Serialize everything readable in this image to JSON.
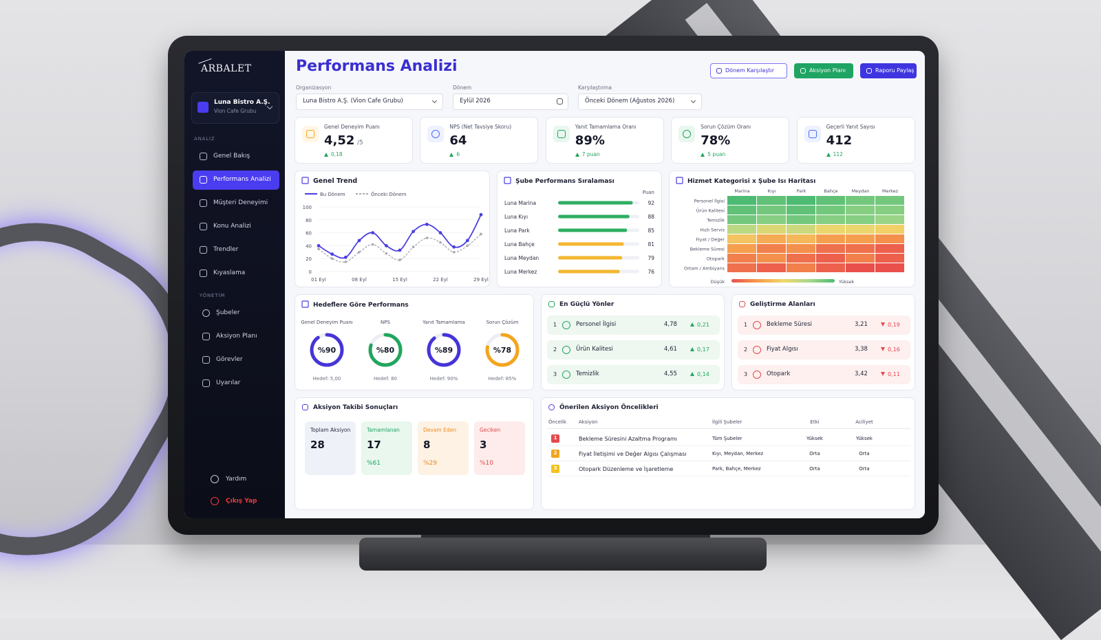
{
  "sidebar": {
    "brand": "ARBALET",
    "org_name": "Luna Bistro A.Ş.",
    "org_sub": "Vion Cafe Grubu",
    "section_analysis": "ANALİZ",
    "nav_analysis": [
      "Genel Bakış",
      "Performans Analizi",
      "Müşteri Deneyimi",
      "Konu Analizi",
      "Trendler",
      "Kıyaslama"
    ],
    "section_management": "YÖNETİM",
    "nav_management": [
      "Şubeler",
      "Aksiyon Planı",
      "Görevler",
      "Uyarılar"
    ],
    "help": "Yardım",
    "logout": "Çıkış Yap"
  },
  "header": {
    "title": "Performans Analizi",
    "buttons": [
      "Dönem Karşılaştır",
      "Aksiyon Planı",
      "Raporu Paylaş"
    ],
    "filters": [
      {
        "label": "Organizasyon",
        "value": "Luna Bistro A.Ş. (Vion Cafe Grubu)"
      },
      {
        "label": "Dönem",
        "value": "Eylül 2026"
      },
      {
        "label": "Karşılaştırma",
        "value": "Önceki Dönem (Ağustos 2026)"
      }
    ]
  },
  "kpis": [
    {
      "label": "Genel Deneyim Puanı",
      "value": "4,52",
      "unit": "/5",
      "change": "0,18"
    },
    {
      "label": "NPS (Net Tavsiye Skoru)",
      "value": "64",
      "change": "6"
    },
    {
      "label": "Yanıt Tamamlama Oranı",
      "value": "89%",
      "change": "7 puan"
    },
    {
      "label": "Sorun Çözüm Oranı",
      "value": "78%",
      "change": "5 puan"
    },
    {
      "label": "Geçerli Yanıt Sayısı",
      "value": "412",
      "change": "112"
    }
  ],
  "chart_data": [
    {
      "type": "line",
      "title": "Genel Trend",
      "categories": [
        "01 Eyl",
        null,
        null,
        "08 Eyl",
        null,
        null,
        "15 Eyl",
        null,
        null,
        "22 Eyl",
        null,
        null,
        "29 Eyl"
      ],
      "series": [
        {
          "name": "Bu Dönem",
          "color": "#4b3fe0",
          "values": [
            40,
            27,
            22,
            48,
            60,
            40,
            33,
            62,
            73,
            60,
            38,
            48,
            88
          ]
        },
        {
          "name": "Önceki Dönem",
          "color": "#a8a8b0",
          "values": [
            35,
            20,
            15,
            30,
            42,
            28,
            18,
            38,
            52,
            45,
            30,
            40,
            58
          ]
        }
      ],
      "ylim": [
        0,
        100
      ],
      "yticks": [
        0,
        20,
        40,
        60,
        80,
        100
      ]
    },
    {
      "type": "bar",
      "title": "Şube Performans Sıralaması",
      "value_header": "Puan",
      "categories": [
        "Luna Marina",
        "Luna Kıyı",
        "Luna Park",
        "Luna Bahçe",
        "Luna Meydan",
        "Luna Merkez"
      ],
      "values": [
        92,
        88,
        85,
        81,
        79,
        76
      ],
      "colors": [
        "#2fae63",
        "#2fae63",
        "#2fae63",
        "#f3b731",
        "#f3b731",
        "#f3b731"
      ],
      "xlim": [
        0,
        100
      ]
    },
    {
      "type": "heatmap",
      "title": "Hizmet Kategorisi x Şube Isı Haritası",
      "columns": [
        "Marina",
        "Kıyı",
        "Park",
        "Bahçe",
        "Meydan",
        "Merkez"
      ],
      "rows": [
        "Personel İlgisi",
        "Ürün Kalitesi",
        "Temizlik",
        "Hızlı Servis",
        "Fiyat / Değer",
        "Bekleme Süresi",
        "Otopark",
        "Ortam / Ambiyans"
      ],
      "values": [
        [
          4.8,
          4.7,
          4.8,
          4.7,
          4.6,
          4.6
        ],
        [
          4.7,
          4.6,
          4.7,
          4.6,
          4.5,
          4.5
        ],
        [
          4.6,
          4.5,
          4.6,
          4.5,
          4.5,
          4.4
        ],
        [
          4.2,
          4.0,
          4.1,
          3.9,
          3.9,
          3.8
        ],
        [
          3.7,
          3.5,
          3.6,
          3.4,
          3.4,
          3.3
        ],
        [
          3.4,
          3.2,
          3.3,
          3.1,
          3.1,
          3.0
        ],
        [
          3.2,
          3.3,
          3.1,
          3.0,
          3.2,
          3.0
        ],
        [
          3.1,
          3.0,
          3.2,
          3.0,
          2.9,
          2.9
        ]
      ],
      "colors": [
        "#e9504c",
        "#f59c4c",
        "#f2d66a",
        "#a8d98b",
        "#4dbb72"
      ],
      "legend_low": "Düşük",
      "legend_high": "Yüksek"
    },
    {
      "type": "gauge",
      "title": "Hedeflere Göre Performans",
      "categories": [
        "Genel Deneyim Puanı",
        "NPS",
        "Yanıt Tamamlama",
        "Sorun Çözüm"
      ],
      "values": [
        90,
        80,
        89,
        78
      ],
      "value_labels": [
        "%90",
        "%80",
        "%89",
        "%78"
      ],
      "target_labels": [
        "Hedef: 5,00",
        "Hedef: 80",
        "Hedef: 90%",
        "Hedef: 85%"
      ],
      "colors": [
        "#4535d8",
        "#22a55e",
        "#4535d8",
        "#f3a51f"
      ],
      "ylim": [
        0,
        100
      ]
    }
  ],
  "strengths": {
    "title": "En Güçlü Yönler",
    "items": [
      {
        "rank": "1",
        "name": "Personel İlgisi",
        "score": "4,78",
        "change": "0,21"
      },
      {
        "rank": "2",
        "name": "Ürün Kalitesi",
        "score": "4,61",
        "change": "0,17"
      },
      {
        "rank": "3",
        "name": "Temizlik",
        "score": "4,55",
        "change": "0,14"
      }
    ]
  },
  "improvements": {
    "title": "Geliştirme Alanları",
    "items": [
      {
        "rank": "1",
        "name": "Bekleme Süresi",
        "score": "3,21",
        "change": "0,19"
      },
      {
        "rank": "2",
        "name": "Fiyat Algısı",
        "score": "3,38",
        "change": "0,16"
      },
      {
        "rank": "3",
        "name": "Otopark",
        "score": "3,42",
        "change": "0,11"
      }
    ]
  },
  "action_tracking": {
    "title": "Aksiyon Takibi Sonuçları",
    "items": [
      {
        "label": "Toplam Aksiyon",
        "value": "28"
      },
      {
        "label": "Tamamlanan",
        "value": "17",
        "percent": "%61"
      },
      {
        "label": "Devam Eden",
        "value": "8",
        "percent": "%29"
      },
      {
        "label": "Geciken",
        "value": "3",
        "percent": "%10"
      }
    ]
  },
  "recommendations": {
    "title": "Önerilen Aksiyon Öncelikleri",
    "headers": [
      "Öncelik",
      "Aksiyon",
      "İlgili Şubeler",
      "Etki",
      "Aciliyet"
    ],
    "rows": [
      [
        "1",
        "Bekleme Süresini Azaltma Programı",
        "Tüm Şubeler",
        "Yüksek",
        "Yüksek"
      ],
      [
        "2",
        "Fiyat İletişimi ve Değer Algısı Çalışması",
        "Kıyı, Meydan, Merkez",
        "Orta",
        "Orta"
      ],
      [
        "3",
        "Otopark Düzenleme ve İşaretleme",
        "Park, Bahçe, Merkez",
        "Orta",
        "Orta"
      ]
    ]
  }
}
